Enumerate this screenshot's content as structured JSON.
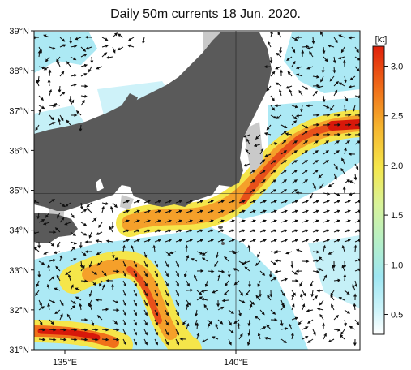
{
  "title": "Daily 50m currents 18 Jun. 2020.",
  "lat_labels": [
    "39°N",
    "38°N",
    "37°N",
    "36°N",
    "35°N",
    "34°N",
    "33°N",
    "32°N",
    "31°N"
  ],
  "lon_labels": [
    "135°E",
    "140°E"
  ],
  "colorbar": {
    "unit": "[kt]",
    "ticks": [
      "0.5",
      "1.0",
      "1.5",
      "2.0",
      "2.5",
      "3.0"
    ]
  },
  "colors": {
    "land": "#5a5a5a",
    "shelf": "#c8c8c8",
    "weak": "#ffffff",
    "cyan": "#9ee6f2",
    "yellow": "#f5e64a",
    "orange": "#f58a1e",
    "red": "#e0200a"
  }
}
